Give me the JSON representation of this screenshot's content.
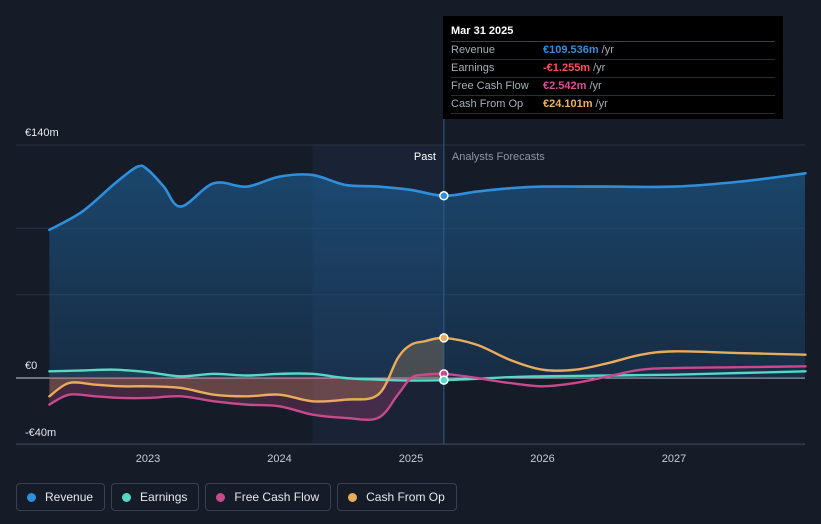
{
  "chart_data": {
    "type": "line",
    "title": "",
    "ylim": [
      -40,
      140
    ],
    "ytick_labels": [
      "€140m",
      "€0",
      "-€40m"
    ],
    "xtick_labels": [
      "2023",
      "2024",
      "2025",
      "2026",
      "2027"
    ],
    "xrange": [
      2022.3,
      2028.0
    ],
    "past_label": "Past",
    "forecast_label": "Analysts Forecasts",
    "divider_x": 2025.25,
    "shade_start_x": 2024.25,
    "series": [
      {
        "name": "Revenue",
        "color": "#2f8fdc",
        "x": [
          2022.25,
          2022.5,
          2022.75,
          2022.92,
          2023.0,
          2023.12,
          2023.25,
          2023.5,
          2023.75,
          2024.0,
          2024.25,
          2024.5,
          2024.75,
          2025.0,
          2025.25,
          2025.5,
          2025.75,
          2026.0,
          2026.5,
          2027.0,
          2027.5,
          2028.0
        ],
        "y": [
          89,
          100,
          117,
          127,
          125,
          115,
          103,
          117,
          115,
          121,
          122,
          116,
          115,
          113,
          109.5,
          112,
          114,
          115,
          115,
          115,
          118,
          123
        ]
      },
      {
        "name": "Earnings",
        "color": "#58d6c6",
        "x": [
          2022.25,
          2022.5,
          2022.75,
          2023.0,
          2023.25,
          2023.5,
          2023.75,
          2024.0,
          2024.25,
          2024.5,
          2024.75,
          2025.0,
          2025.25,
          2025.5,
          2025.75,
          2026.0,
          2026.5,
          2027.0,
          2027.5,
          2028.0
        ],
        "y": [
          4,
          4.5,
          5,
          3.5,
          1,
          2.5,
          1.5,
          2.5,
          2.5,
          0,
          -1,
          -1.5,
          -1.3,
          -0.5,
          0.5,
          1,
          1.5,
          2,
          3,
          4
        ]
      },
      {
        "name": "Free Cash Flow",
        "color": "#c84a8d",
        "x": [
          2022.25,
          2022.4,
          2022.6,
          2022.8,
          2023.0,
          2023.25,
          2023.5,
          2023.75,
          2024.0,
          2024.25,
          2024.5,
          2024.75,
          2024.9,
          2025.0,
          2025.1,
          2025.25,
          2025.5,
          2025.75,
          2026.0,
          2026.25,
          2026.5,
          2026.75,
          2027.0,
          2027.5,
          2028.0
        ],
        "y": [
          -16,
          -10,
          -11,
          -12,
          -12,
          -11,
          -14,
          -16,
          -17,
          -22,
          -24,
          -24,
          -10,
          0,
          2,
          2.5,
          0,
          -3,
          -5,
          -3,
          1,
          5,
          6,
          6.5,
          7
        ]
      },
      {
        "name": "Cash From Op",
        "color": "#e8ac5c",
        "x": [
          2022.25,
          2022.4,
          2022.6,
          2022.8,
          2023.0,
          2023.25,
          2023.5,
          2023.75,
          2024.0,
          2024.25,
          2024.5,
          2024.75,
          2024.9,
          2025.0,
          2025.1,
          2025.25,
          2025.5,
          2025.75,
          2026.0,
          2026.25,
          2026.5,
          2026.75,
          2027.0,
          2027.5,
          2028.0
        ],
        "y": [
          -11,
          -3,
          -4,
          -5,
          -5,
          -6,
          -10,
          -11,
          -10,
          -14,
          -13,
          -10,
          12,
          20,
          22,
          24,
          20,
          11,
          5,
          5,
          9,
          14,
          16,
          15,
          14
        ]
      }
    ],
    "markers": [
      {
        "series": "Revenue",
        "x": 2025.25,
        "y": 109.5
      },
      {
        "series": "Cash From Op",
        "x": 2025.25,
        "y": 24.1
      },
      {
        "series": "Free Cash Flow",
        "x": 2025.25,
        "y": 2.5
      },
      {
        "series": "Earnings",
        "x": 2025.25,
        "y": -1.3
      }
    ]
  },
  "tooltip": {
    "date": "Mar 31 2025",
    "rows": [
      {
        "label": "Revenue",
        "value": "€109.536m",
        "unit": "/yr",
        "color": "#2f8fdc"
      },
      {
        "label": "Earnings",
        "value": "-€1.255m",
        "unit": "/yr",
        "color": "#ff4d5e"
      },
      {
        "label": "Free Cash Flow",
        "value": "€2.542m",
        "unit": "/yr",
        "color": "#d94f98"
      },
      {
        "label": "Cash From Op",
        "value": "€24.101m",
        "unit": "/yr",
        "color": "#f0b060"
      }
    ]
  },
  "legend": [
    {
      "label": "Revenue",
      "color": "#2f8fdc"
    },
    {
      "label": "Earnings",
      "color": "#58d6c6"
    },
    {
      "label": "Free Cash Flow",
      "color": "#c84a8d"
    },
    {
      "label": "Cash From Op",
      "color": "#e8ac5c"
    }
  ]
}
